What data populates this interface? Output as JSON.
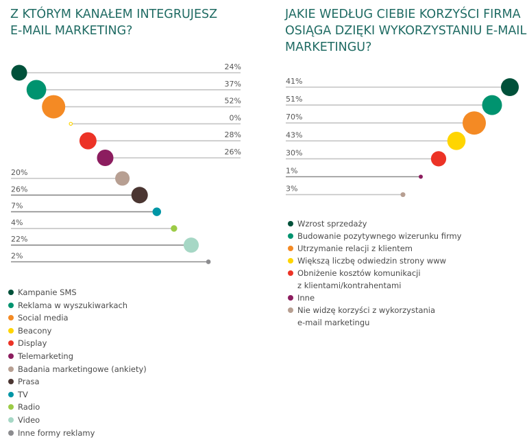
{
  "chart_data": [
    {
      "type": "scatter",
      "subtype": "lollipop",
      "title": "Z KTÓRYM KANAŁEM INTEGRUJESZ E-MAIL MARKETING?",
      "unit": "%",
      "categories": [
        "Kampanie SMS",
        "Reklama w wyszukiwarkach",
        "Social media",
        "Beacony",
        "Display",
        "Telemarketing",
        "Badania marketingowe (ankiety)",
        "Prasa",
        "TV",
        "Radio",
        "Video",
        "Inne formy reklamy"
      ],
      "values": [
        24,
        37,
        52,
        0,
        28,
        26,
        20,
        26,
        7,
        4,
        22,
        2
      ],
      "labels": [
        "24%",
        "37%",
        "52%",
        "0%",
        "28%",
        "26%",
        "20%",
        "26%",
        "7%",
        "4%",
        "22%",
        "2%"
      ],
      "colors": [
        "#00513a",
        "#00936f",
        "#f48a24",
        "#ffd500",
        "#ec3326",
        "#8c1d5f",
        "#b79f92",
        "#4b3632",
        "#0096a6",
        "#9ccb46",
        "#a6d7c5",
        "#8c8c8f"
      ],
      "legend": "bottom-left"
    },
    {
      "type": "scatter",
      "subtype": "lollipop",
      "title": "JAKIE WEDŁUG CIEBIE KORZYŚCI FIRMA OSIĄGA DZIĘKI WYKORZYSTANIU E-MAIL MARKETINGU?",
      "unit": "%",
      "categories": [
        "Wzrost sprzedaży",
        "Budowanie pozytywnego wizerunku firmy",
        "Utrzymanie relacji z klientem",
        "Większą liczbę odwiedzin strony www",
        "Obniżenie kosztów komunikacji z klientami/kontrahentami",
        "Inne",
        "Nie widzę korzyści z wykorzystania e-mail marketingu"
      ],
      "values": [
        41,
        51,
        70,
        43,
        30,
        1,
        3
      ],
      "labels": [
        "41%",
        "51%",
        "70%",
        "43%",
        "30%",
        "1%",
        "3%"
      ],
      "colors": [
        "#00513a",
        "#00936f",
        "#f48a24",
        "#ffd500",
        "#ec3326",
        "#8c1d5f",
        "#b79f92"
      ],
      "legend": "bottom-left"
    }
  ],
  "left": {
    "title": "Z KTÓRYM KANAŁEM INTEGRUJESZ\nE-MAIL MARKETING?",
    "legend": [
      {
        "label": "Kampanie SMS",
        "color": "#00513a"
      },
      {
        "label": "Reklama w wyszukiwarkach",
        "color": "#00936f"
      },
      {
        "label": "Social media",
        "color": "#f48a24"
      },
      {
        "label": "Beacony",
        "color": "#ffd500"
      },
      {
        "label": "Display",
        "color": "#ec3326"
      },
      {
        "label": "Telemarketing",
        "color": "#8c1d5f"
      },
      {
        "label": "Badania marketingowe (ankiety)",
        "color": "#b79f92"
      },
      {
        "label": "Prasa",
        "color": "#4b3632"
      },
      {
        "label": "TV",
        "color": "#0096a6"
      },
      {
        "label": "Radio",
        "color": "#9ccb46"
      },
      {
        "label": "Video",
        "color": "#a6d7c5"
      },
      {
        "label": "Inne formy reklamy",
        "color": "#8c8c8f"
      }
    ]
  },
  "right": {
    "title": "JAKIE WEDŁUG CIEBIE KORZYŚCI FIRMA\nOSIĄGA DZIĘKI WYKORZYSTANIU E-MAIL\nMARKETINGU?",
    "legend": [
      {
        "label": "Wzrost sprzedaży",
        "color": "#00513a"
      },
      {
        "label": "Budowanie pozytywnego wizerunku firmy",
        "color": "#00936f"
      },
      {
        "label": "Utrzymanie relacji z klientem",
        "color": "#f48a24"
      },
      {
        "label": "Większą liczbę odwiedzin strony www",
        "color": "#ffd500"
      },
      {
        "label": "Obniżenie kosztów komunikacji\nz klientami/kontrahentami",
        "color": "#ec3326"
      },
      {
        "label": "Inne",
        "color": "#8c1d5f"
      },
      {
        "label": "Nie widzę korzyści z wykorzystania\ne-mail marketingu",
        "color": "#b79f92"
      }
    ]
  }
}
